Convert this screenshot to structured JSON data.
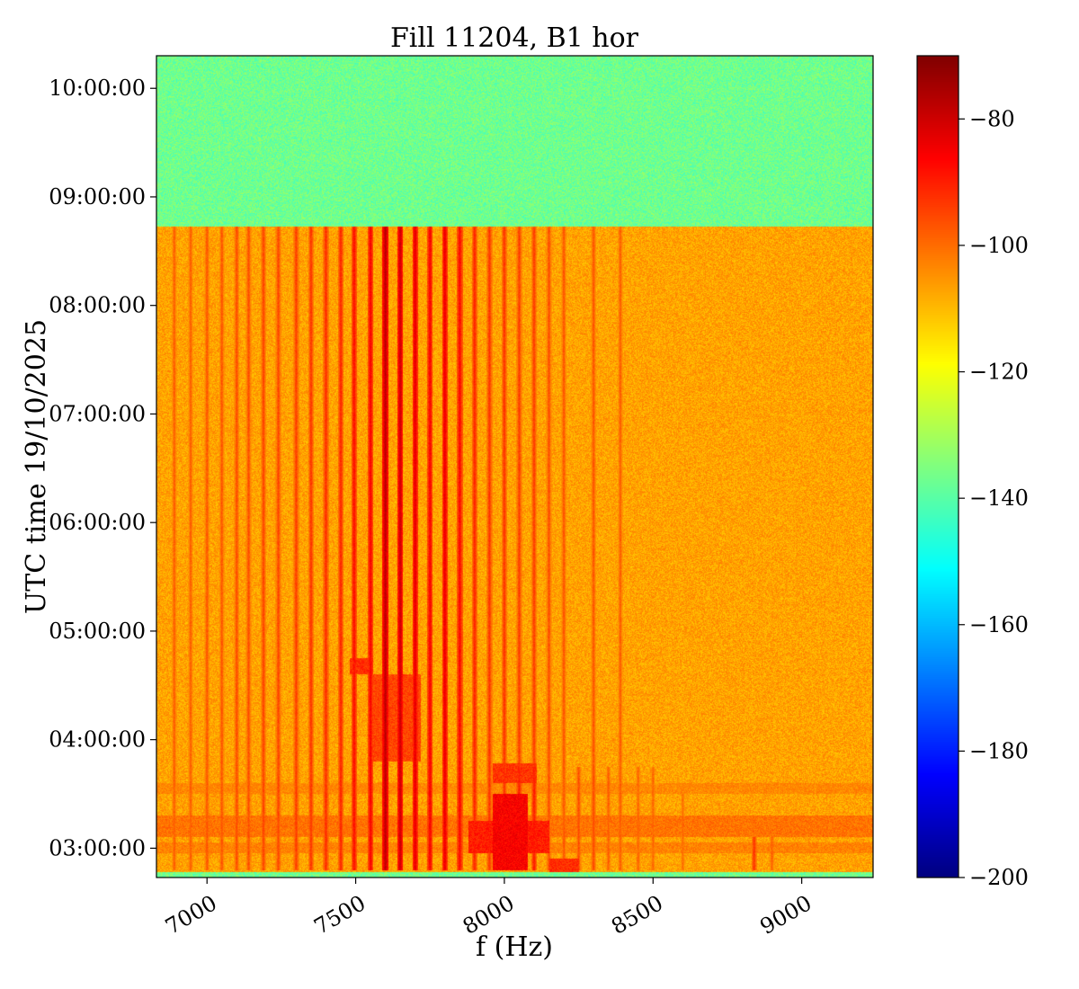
{
  "chart_data": {
    "type": "heatmap",
    "title": "Fill 11204, B1 hor",
    "xlabel": "f (Hz)",
    "ylabel": "UTC time 19/10/2025",
    "xlim": [
      6830,
      9240
    ],
    "ylim_hours": [
      2.73,
      10.3
    ],
    "x_ticks": [
      {
        "value": 7000,
        "label": "7000"
      },
      {
        "value": 7500,
        "label": "7500"
      },
      {
        "value": 8000,
        "label": "8000"
      },
      {
        "value": 8500,
        "label": "8500"
      },
      {
        "value": 9000,
        "label": "9000"
      }
    ],
    "y_ticks": [
      {
        "value": 3,
        "label": "03:00:00"
      },
      {
        "value": 4,
        "label": "04:00:00"
      },
      {
        "value": 5,
        "label": "05:00:00"
      },
      {
        "value": 6,
        "label": "06:00:00"
      },
      {
        "value": 7,
        "label": "07:00:00"
      },
      {
        "value": 8,
        "label": "08:00:00"
      },
      {
        "value": 9,
        "label": "09:00:00"
      },
      {
        "value": 10,
        "label": "10:00:00"
      }
    ],
    "colorbar": {
      "colormap": "jet",
      "vmin": -200,
      "vmax": -70,
      "ticks": [
        {
          "value": -80,
          "label": "−80"
        },
        {
          "value": -100,
          "label": "−100"
        },
        {
          "value": -120,
          "label": "−120"
        },
        {
          "value": -140,
          "label": "−140"
        },
        {
          "value": -160,
          "label": "−160"
        },
        {
          "value": -180,
          "label": "−180"
        },
        {
          "value": -200,
          "label": "−200"
        }
      ]
    },
    "regions": {
      "no_beam_background_db": -137,
      "beam_background_db": -107,
      "beam_end_hours": 8.73,
      "bottom_edge_hours": 2.78
    },
    "lines": [
      {
        "f": 6890,
        "t0": 2.8,
        "t1": 8.73,
        "db": -98
      },
      {
        "f": 6945,
        "t0": 2.8,
        "t1": 8.73,
        "db": -98
      },
      {
        "f": 7000,
        "t0": 2.8,
        "t1": 8.73,
        "db": -97
      },
      {
        "f": 7050,
        "t0": 2.8,
        "t1": 8.73,
        "db": -97
      },
      {
        "f": 7100,
        "t0": 2.8,
        "t1": 8.73,
        "db": -96
      },
      {
        "f": 7140,
        "t0": 2.8,
        "t1": 8.73,
        "db": -96
      },
      {
        "f": 7190,
        "t0": 2.8,
        "t1": 8.73,
        "db": -95
      },
      {
        "f": 7240,
        "t0": 2.8,
        "t1": 8.73,
        "db": -95
      },
      {
        "f": 7300,
        "t0": 2.8,
        "t1": 8.73,
        "db": -94
      },
      {
        "f": 7350,
        "t0": 2.8,
        "t1": 8.73,
        "db": -93
      },
      {
        "f": 7400,
        "t0": 2.8,
        "t1": 8.73,
        "db": -92
      },
      {
        "f": 7450,
        "t0": 2.8,
        "t1": 8.73,
        "db": -91
      },
      {
        "f": 7495,
        "t0": 2.8,
        "t1": 8.73,
        "db": -88
      },
      {
        "f": 7550,
        "t0": 2.8,
        "t1": 8.73,
        "db": -86
      },
      {
        "f": 7600,
        "t0": 2.8,
        "t1": 8.73,
        "db": -78
      },
      {
        "f": 7650,
        "t0": 2.8,
        "t1": 8.73,
        "db": -80
      },
      {
        "f": 7700,
        "t0": 2.8,
        "t1": 8.73,
        "db": -83
      },
      {
        "f": 7750,
        "t0": 2.8,
        "t1": 8.73,
        "db": -86
      },
      {
        "f": 7800,
        "t0": 2.8,
        "t1": 8.73,
        "db": -84
      },
      {
        "f": 7850,
        "t0": 2.8,
        "t1": 8.73,
        "db": -87
      },
      {
        "f": 7900,
        "t0": 2.8,
        "t1": 8.73,
        "db": -91
      },
      {
        "f": 7950,
        "t0": 2.8,
        "t1": 8.73,
        "db": -93
      },
      {
        "f": 8000,
        "t0": 2.8,
        "t1": 8.73,
        "db": -93
      },
      {
        "f": 8050,
        "t0": 2.8,
        "t1": 8.73,
        "db": -94
      },
      {
        "f": 8100,
        "t0": 2.8,
        "t1": 8.73,
        "db": -94
      },
      {
        "f": 8150,
        "t0": 2.8,
        "t1": 8.73,
        "db": -96
      },
      {
        "f": 8200,
        "t0": 2.8,
        "t1": 8.73,
        "db": -97
      },
      {
        "f": 8300,
        "t0": 2.8,
        "t1": 8.73,
        "db": -97
      },
      {
        "f": 8390,
        "t0": 2.8,
        "t1": 8.73,
        "db": -98
      },
      {
        "f": 8050,
        "t0": 2.8,
        "t1": 3.75,
        "db": -90
      },
      {
        "f": 8100,
        "t0": 2.8,
        "t1": 3.75,
        "db": -90
      },
      {
        "f": 8250,
        "t0": 2.8,
        "t1": 3.75,
        "db": -96
      },
      {
        "f": 8300,
        "t0": 2.8,
        "t1": 3.75,
        "db": -96
      },
      {
        "f": 8350,
        "t0": 2.8,
        "t1": 3.75,
        "db": -98
      },
      {
        "f": 8450,
        "t0": 2.8,
        "t1": 3.75,
        "db": -99
      },
      {
        "f": 8500,
        "t0": 2.8,
        "t1": 3.75,
        "db": -99
      },
      {
        "f": 8600,
        "t0": 2.8,
        "t1": 3.5,
        "db": -100
      },
      {
        "f": 8840,
        "t0": 2.8,
        "t1": 3.1,
        "db": -93
      },
      {
        "f": 8900,
        "t0": 2.8,
        "t1": 3.1,
        "db": -98
      }
    ],
    "blobs": [
      {
        "f0": 7960,
        "f1": 8080,
        "t0": 2.8,
        "t1": 3.5,
        "db": -86
      },
      {
        "f0": 7880,
        "f1": 8150,
        "t0": 2.95,
        "t1": 3.25,
        "db": -90
      },
      {
        "f0": 7480,
        "f1": 7560,
        "t0": 4.6,
        "t1": 4.75,
        "db": -92
      },
      {
        "f0": 7560,
        "f1": 7720,
        "t0": 3.8,
        "t1": 4.6,
        "db": -95
      },
      {
        "f0": 7960,
        "f1": 8110,
        "t0": 3.6,
        "t1": 3.78,
        "db": -93
      },
      {
        "f0": 8150,
        "f1": 8250,
        "t0": 2.78,
        "t1": 2.9,
        "db": -92
      }
    ],
    "bands": [
      {
        "t0": 3.1,
        "t1": 3.3,
        "db": -101
      },
      {
        "t0": 2.95,
        "t1": 3.05,
        "db": -103
      },
      {
        "t0": 3.5,
        "t1": 3.6,
        "db": -104
      }
    ]
  }
}
